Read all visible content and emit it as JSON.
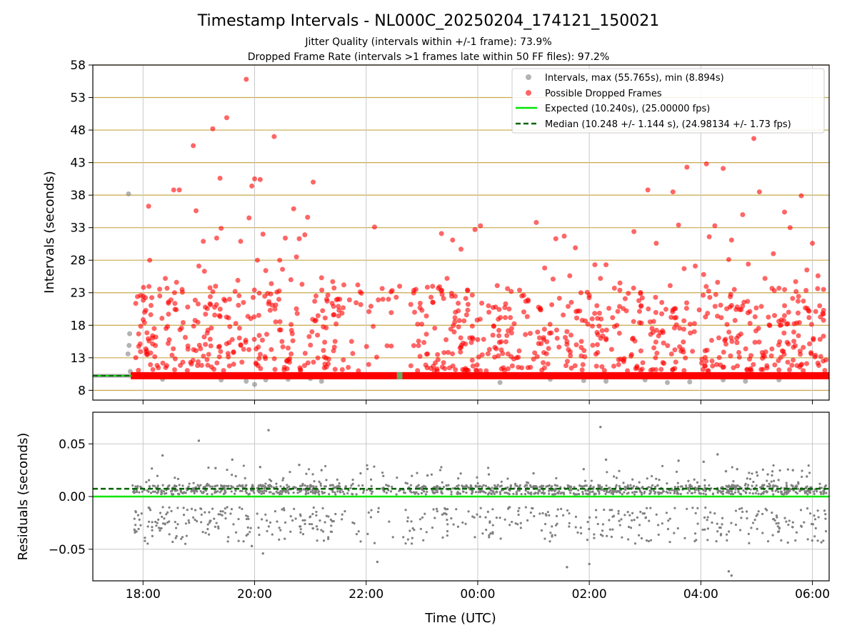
{
  "title": "Timestamp Intervals - NL000C_20250204_174121_150021",
  "subtitle_lines": [
    "Jitter Quality (intervals within +/-1 frame): 73.9%",
    "Dropped Frame Rate (intervals >1 frames late within 50 FF files): 97.2%"
  ],
  "colors": {
    "gray": "#808080",
    "red": "#ff0000",
    "expected_line": "#00e600",
    "median_line": "#006400",
    "grid_gold": "#c8a84a",
    "grid_gray": "#c8c8c8"
  },
  "chart_data": [
    {
      "type": "scatter",
      "name": "intervals",
      "ylabel": "Intervals (seconds)",
      "xlim": [
        17.1,
        30.3
      ],
      "ylim": [
        6.5,
        58
      ],
      "x_unit": "hours UTC (values above 24 are after midnight)",
      "yticks": [
        8,
        13,
        18,
        23,
        28,
        33,
        38,
        43,
        48,
        53,
        58
      ],
      "ytick_labels": [
        "8",
        "13",
        "18",
        "23",
        "28",
        "33",
        "38",
        "43",
        "48",
        "53",
        "58"
      ],
      "xticks": [
        18,
        20,
        22,
        24,
        26,
        28,
        30
      ],
      "grid": {
        "horizontal": "gold",
        "vertical": true
      },
      "legend_position": "top-right",
      "legend": [
        "Intervals, max (55.765s), min (8.894s)",
        "Possible Dropped Frames",
        "Expected (10.240s), (25.00000 fps)",
        "Median (10.248 +/- 1.144 s), (24.98134 +/- 1.73 fps)"
      ],
      "expected": 10.24,
      "median": 10.248,
      "dense_band": {
        "series": "gray",
        "x": [
          17.1,
          30.3
        ],
        "y": 10.24
      },
      "dropped_band": {
        "series": "red",
        "x": [
          17.78,
          30.3
        ],
        "y": 10.25
      },
      "series": [
        {
          "name": "Intervals, max (55.765s), min (8.894s)",
          "color": "#808080",
          "x": [
            17.74,
            17.76,
            17.75,
            17.73,
            17.77,
            18.35,
            19.4,
            19.85,
            20.0,
            20.2,
            20.6,
            21.0,
            21.2,
            24.4,
            25.3,
            25.9,
            26.3,
            27.0,
            27.4,
            27.8,
            28.4,
            28.8,
            29.4
          ],
          "y": [
            38.2,
            16.7,
            14.9,
            13.6,
            10.9,
            9.7,
            9.6,
            9.4,
            8.9,
            9.6,
            9.7,
            9.8,
            9.4,
            9.2,
            9.7,
            9.5,
            9.4,
            9.6,
            9.2,
            9.3,
            9.6,
            9.4,
            9.6
          ]
        },
        {
          "name": "Possible Dropped Frames",
          "color": "#ff0000",
          "x": [
            19.85,
            18.55,
            19.25,
            18.1,
            18.9,
            19.5,
            19.38,
            18.95,
            19.75,
            18.65,
            19.08,
            19.32,
            19.4,
            20.35,
            20.0,
            19.95,
            20.1,
            20.9,
            20.7,
            19.9,
            20.05,
            20.15,
            20.45,
            20.55,
            21.05,
            20.8,
            20.95,
            21.2,
            21.4,
            21.6,
            22.15,
            22.4,
            23.35,
            23.55,
            23.7,
            23.95,
            24.05,
            24.35,
            24.6,
            24.75,
            25.05,
            25.4,
            25.55,
            25.75,
            26.1,
            26.3,
            26.55,
            26.8,
            27.05,
            27.2,
            27.5,
            27.75,
            27.6,
            28.1,
            28.15,
            28.4,
            28.25,
            28.55,
            28.5,
            28.75,
            28.95,
            29.05,
            29.3,
            29.5,
            29.6,
            29.8,
            30.0,
            17.9,
            18.0,
            18.05,
            18.12,
            18.2,
            18.3,
            18.4,
            18.5,
            18.6,
            18.7,
            18.8,
            19.0,
            19.1,
            19.2,
            19.3,
            19.45,
            19.55,
            19.65,
            19.7,
            19.8,
            20.2,
            20.25,
            20.3,
            20.4,
            20.5,
            20.65,
            20.75,
            20.85,
            21.1,
            21.3,
            21.5,
            21.7,
            21.85,
            22.05,
            22.3,
            22.6,
            22.8,
            23.0,
            23.2,
            23.45,
            23.6,
            23.8,
            24.2,
            24.5,
            24.9,
            25.2,
            25.35,
            25.65,
            25.85,
            26.0,
            26.2,
            26.45,
            26.7,
            26.95,
            27.3,
            27.45,
            27.7,
            27.9,
            28.05,
            28.3,
            28.6,
            28.85,
            29.15,
            29.4,
            29.7,
            29.9,
            30.1,
            30.2,
            18.08,
            18.45,
            18.95,
            19.15,
            19.6,
            20.08,
            20.6,
            21.25,
            22.45,
            23.1,
            23.9,
            24.7,
            25.6,
            26.4,
            27.1,
            27.85,
            28.45,
            29.1,
            29.75,
            30.15
          ],
          "y": [
            55.8,
            38.8,
            48.2,
            36.3,
            45.6,
            49.9,
            40.6,
            35.6,
            30.9,
            38.8,
            30.9,
            31.4,
            32.9,
            47.0,
            40.5,
            39.4,
            40.4,
            31.9,
            35.9,
            34.5,
            28.0,
            32.0,
            28.0,
            31.4,
            40.0,
            31.3,
            34.6,
            25.3,
            24.7,
            24.2,
            33.1,
            22.0,
            32.1,
            31.1,
            29.7,
            32.7,
            33.3,
            24.1,
            23.2,
            23.4,
            33.8,
            31.3,
            31.7,
            29.9,
            27.3,
            27.3,
            24.5,
            32.4,
            38.8,
            30.6,
            38.5,
            42.3,
            33.4,
            42.8,
            31.6,
            42.1,
            33.3,
            31.1,
            28.1,
            35.0,
            46.7,
            38.5,
            29.0,
            35.4,
            33.0,
            37.9,
            30.6,
            22.4,
            22.5,
            20.3,
            28.0,
            17.5,
            22.5,
            25.2,
            21.9,
            24.6,
            23.5,
            20.8,
            27.1,
            26.3,
            21.3,
            24.0,
            22.0,
            22.0,
            23.2,
            24.9,
            21.5,
            26.4,
            21.3,
            24.4,
            23.1,
            26.6,
            25.0,
            28.5,
            24.3,
            22.5,
            21.7,
            20.9,
            21.9,
            24.2,
            20.1,
            22.0,
            24.0,
            21.2,
            20.3,
            21.5,
            25.2,
            20.0,
            19.6,
            20.0,
            21.3,
            21.9,
            26.8,
            25.1,
            25.6,
            23.0,
            22.6,
            25.2,
            23.7,
            22.9,
            22.2,
            21.5,
            24.1,
            26.7,
            27.1,
            25.8,
            24.6,
            23.5,
            27.4,
            25.2,
            23.7,
            24.7,
            26.5,
            25.6,
            20.3,
            13.5,
            15.2,
            14.1,
            16.8,
            15.8,
            12.9,
            14.5,
            13.1,
            14.8,
            13.6,
            16.1,
            13.0,
            15.5,
            14.3,
            16.6,
            14.0,
            15.1,
            13.8,
            16.4,
            13.2
          ]
        }
      ]
    },
    {
      "type": "scatter",
      "name": "residuals",
      "ylabel": "Residuals (seconds)",
      "xlabel": "Time (UTC)",
      "xlim": [
        17.1,
        30.3
      ],
      "ylim": [
        -0.08,
        0.08
      ],
      "yticks": [
        0.05,
        0.0,
        -0.05
      ],
      "ytick_labels": [
        "0.05",
        "0.00",
        "−0.05"
      ],
      "xticks": [
        18,
        20,
        22,
        24,
        26,
        28,
        30
      ],
      "xtick_labels": [
        "18:00",
        "20:00",
        "22:00",
        "00:00",
        "02:00",
        "04:00",
        "06:00"
      ],
      "grid": {
        "horizontal": true,
        "vertical": true
      },
      "expected": 0.0,
      "median": 0.0074,
      "main_band": {
        "x": [
          17.78,
          30.3
        ],
        "y": [
          0.002,
          0.011
        ]
      },
      "points": {
        "x": [
          19.0,
          20.25,
          20.8,
          18.35,
          19.6,
          19.3,
          20.1,
          21.2,
          21.9,
          23.1,
          24.2,
          25.0,
          25.9,
          26.2,
          26.3,
          27.6,
          28.05,
          28.3,
          28.45,
          28.65,
          29.0,
          29.2,
          29.65,
          29.9,
          25.6,
          26.0,
          22.2,
          20.15,
          19.95,
          28.5,
          28.55
        ],
        "y": [
          0.053,
          0.063,
          0.03,
          0.039,
          0.035,
          0.027,
          0.028,
          0.025,
          0.022,
          0.02,
          0.021,
          0.022,
          0.026,
          0.066,
          0.035,
          0.034,
          0.033,
          0.04,
          0.024,
          0.026,
          0.023,
          0.021,
          0.025,
          0.019,
          -0.067,
          -0.064,
          -0.062,
          -0.054,
          -0.047,
          -0.071,
          -0.075
        ]
      },
      "cloud": {
        "x": [
          17.78,
          30.3
        ],
        "y": [
          -0.045,
          -0.01
        ]
      }
    }
  ]
}
